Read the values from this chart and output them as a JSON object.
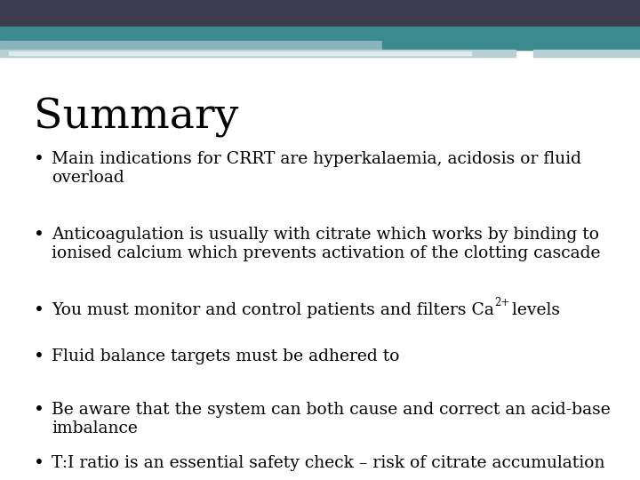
{
  "title": "Summary",
  "background_color": "#ffffff",
  "title_color": "#000000",
  "title_fontsize": 34,
  "title_font": "DejaVu Serif",
  "bullet_fontsize": 13.5,
  "bullet_color": "#000000",
  "bullet_font": "DejaVu Serif",
  "header_dark": "#3d3d4f",
  "header_teal": "#3a8a8e",
  "header_light_teal": "#8ab5bc",
  "header_pale": "#b8cfd4",
  "header_white_stripe": "#ddeaee",
  "bullets": [
    "Main indications for CRRT are hyperkalaemia, acidosis or fluid\noverload",
    "Anticoagulation is usually with citrate which works by binding to\nionised calcium which prevents activation of the clotting cascade",
    "You must monitor and control patients and filters Ca²⁺ levels",
    "Fluid balance targets must be adhered to",
    "Be aware that the system can both cause and correct an acid-base\nimbalance",
    "T:I ratio is an essential safety check – risk of citrate accumulation"
  ]
}
